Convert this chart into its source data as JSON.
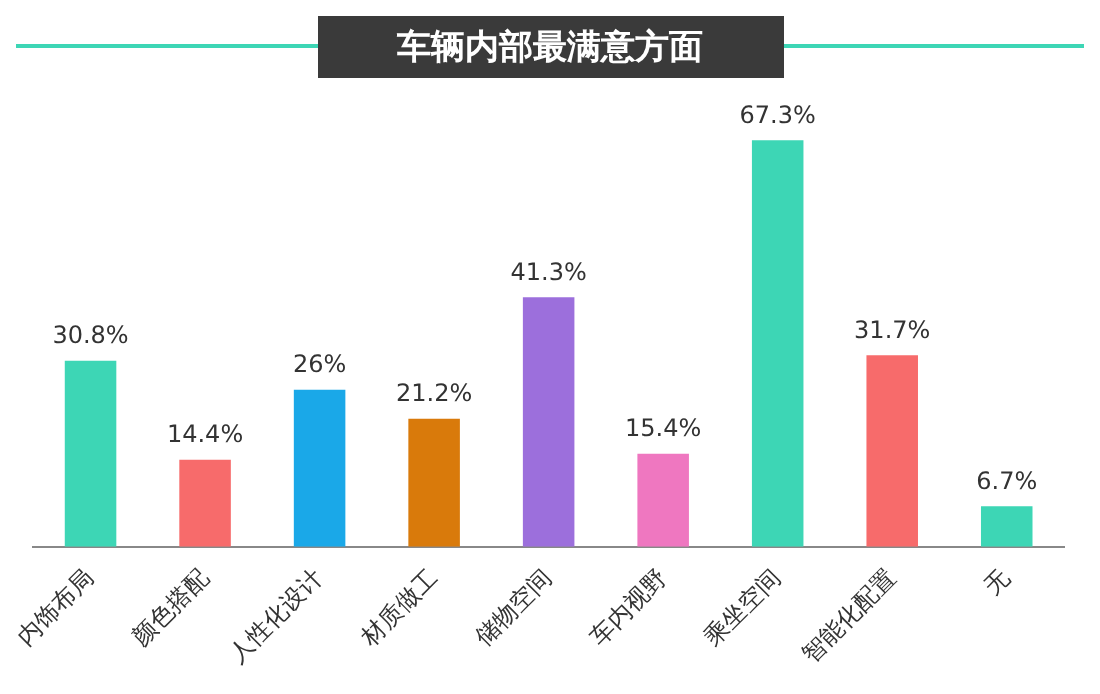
{
  "chart_data": {
    "type": "bar",
    "title": "车辆内部最满意方面",
    "categories": [
      "内饰布局",
      "颜色搭配",
      "人性化设计",
      "材质做工",
      "储物空间",
      "车内视野",
      "乘坐空间",
      "智能化配置",
      "无"
    ],
    "values": [
      30.8,
      14.4,
      26,
      21.2,
      41.3,
      15.4,
      67.3,
      31.7,
      6.7
    ],
    "colors": [
      "#3dd6b5",
      "#f76b6b",
      "#1aa8e8",
      "#d97a0b",
      "#9c6fdc",
      "#ef77c0",
      "#3dd6b5",
      "#f76b6b",
      "#3dd6b5"
    ],
    "value_labels": [
      "30.8%",
      "14.4%",
      "26%",
      "21.2%",
      "41.3%",
      "15.4%",
      "67.3%",
      "31.7%",
      "6.7%"
    ],
    "tick_labels": "x",
    "grid": false,
    "legend": false
  }
}
